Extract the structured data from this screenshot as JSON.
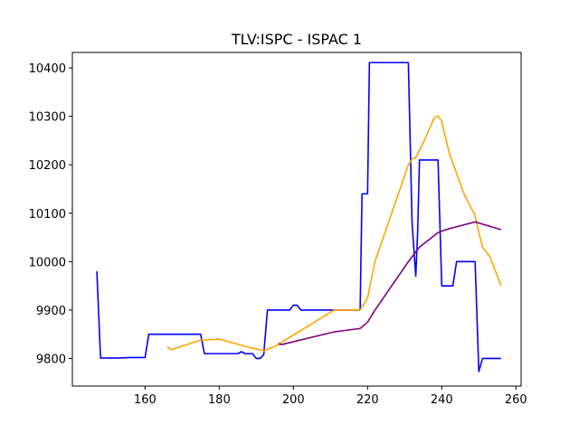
{
  "chart_data": {
    "type": "line",
    "title": "TLV:ISPC - ISPAC 1",
    "xlabel": "",
    "ylabel": "",
    "xlim": [
      140.4,
      261.4
    ],
    "ylim": [
      9743,
      10432
    ],
    "xticks": [
      160,
      180,
      200,
      220,
      240,
      260
    ],
    "yticks": [
      9800,
      9900,
      10000,
      10100,
      10200,
      10300,
      10400
    ],
    "grid": false,
    "series": [
      {
        "color": "#0000ff",
        "x": [
          147,
          148,
          153,
          156,
          158,
          160,
          161,
          162,
          175,
          176,
          185,
          186,
          187,
          189,
          190,
          191,
          192,
          193,
          194,
          199,
          200,
          201,
          202,
          217,
          218,
          218.5,
          219,
          220,
          220.5,
          221,
          231,
          232,
          233,
          233.5,
          234,
          235,
          239,
          240,
          243,
          244,
          249,
          250,
          251,
          256
        ],
        "y": [
          9980,
          9801,
          9801,
          9802,
          9802,
          9802,
          9850,
          9850,
          9850,
          9810,
          9810,
          9814,
          9810,
          9810,
          9800,
          9800,
          9808,
          9900,
          9900,
          9900,
          9910,
          9910,
          9900,
          9900,
          9900,
          10140,
          10140,
          10140,
          10411,
          10411,
          10411,
          10080,
          9970,
          10060,
          10210,
          10210,
          10210,
          9950,
          9950,
          10000,
          10000,
          9773,
          9800,
          9800
        ]
      },
      {
        "color": "#ffa500",
        "x": [
          166,
          167,
          175,
          180,
          188,
          192,
          195,
          211,
          217,
          218,
          220,
          222,
          231,
          232,
          233,
          235,
          238,
          239,
          240,
          242,
          246,
          249,
          250,
          251,
          253,
          256
        ],
        "y": [
          9825,
          9818,
          9838,
          9840,
          9823,
          9816,
          9825,
          9900,
          9900,
          9900,
          9925,
          10000,
          10200,
          10212,
          10215,
          10245,
          10297,
          10301,
          10290,
          10225,
          10140,
          10095,
          10060,
          10030,
          10010,
          9950
        ]
      },
      {
        "color": "#800080",
        "x": [
          196,
          197,
          211,
          218,
          220,
          222,
          231,
          234,
          239,
          240,
          242,
          249,
          256
        ],
        "y": [
          9830,
          9829,
          9855,
          9862,
          9875,
          9900,
          10000,
          10030,
          10060,
          10063,
          10068,
          10082,
          10066
        ]
      }
    ]
  }
}
